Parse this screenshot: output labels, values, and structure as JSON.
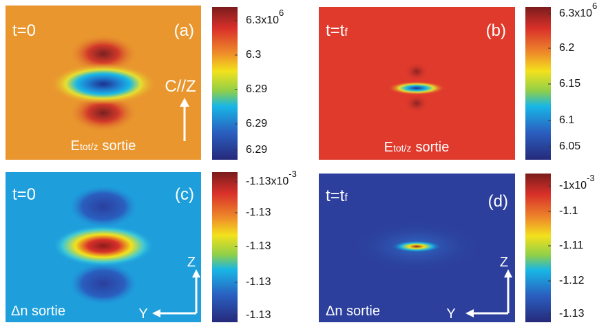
{
  "panels": [
    {
      "time": {
        "main": "t=0"
      },
      "letter": "(a)",
      "caption": {
        "main": "E",
        "sub": "tot/z",
        "rest": "sortie"
      },
      "annotation": "C//Z",
      "colorbar": {
        "ticks": [
          "6.3x10",
          "6.3",
          "6.29",
          "6.29",
          "6.29"
        ],
        "exponent": "6"
      }
    },
    {
      "time": {
        "main": "t=t",
        "sub": "f"
      },
      "letter": "(b)",
      "caption": {
        "main": "E",
        "sub": "tot/z",
        "rest": "sortie"
      },
      "colorbar": {
        "ticks": [
          "6.3x10",
          "6.2",
          "6.15",
          "6.1",
          "6.05"
        ],
        "exponent": "6"
      }
    },
    {
      "time": {
        "main": "t=0"
      },
      "letter": "(c)",
      "caption": {
        "main": "Δn sortie"
      },
      "axes": {
        "vertical": "Z",
        "horizontal": "Y"
      },
      "colorbar": {
        "ticks": [
          "-1.13x10",
          "-1.13",
          "-1.13",
          "-1.13",
          "-1.13"
        ],
        "exponent": "-3"
      }
    },
    {
      "time": {
        "main": "t=t",
        "sub": "f"
      },
      "letter": "(d)",
      "caption": {
        "main": "Δn sortie"
      },
      "axes": {
        "vertical": "Z",
        "horizontal": "Y"
      },
      "colorbar": {
        "ticks": [
          "-1x10",
          "-1.1",
          "-1.11",
          "-1.12",
          "-1.13"
        ],
        "exponent": "-3"
      }
    }
  ]
}
